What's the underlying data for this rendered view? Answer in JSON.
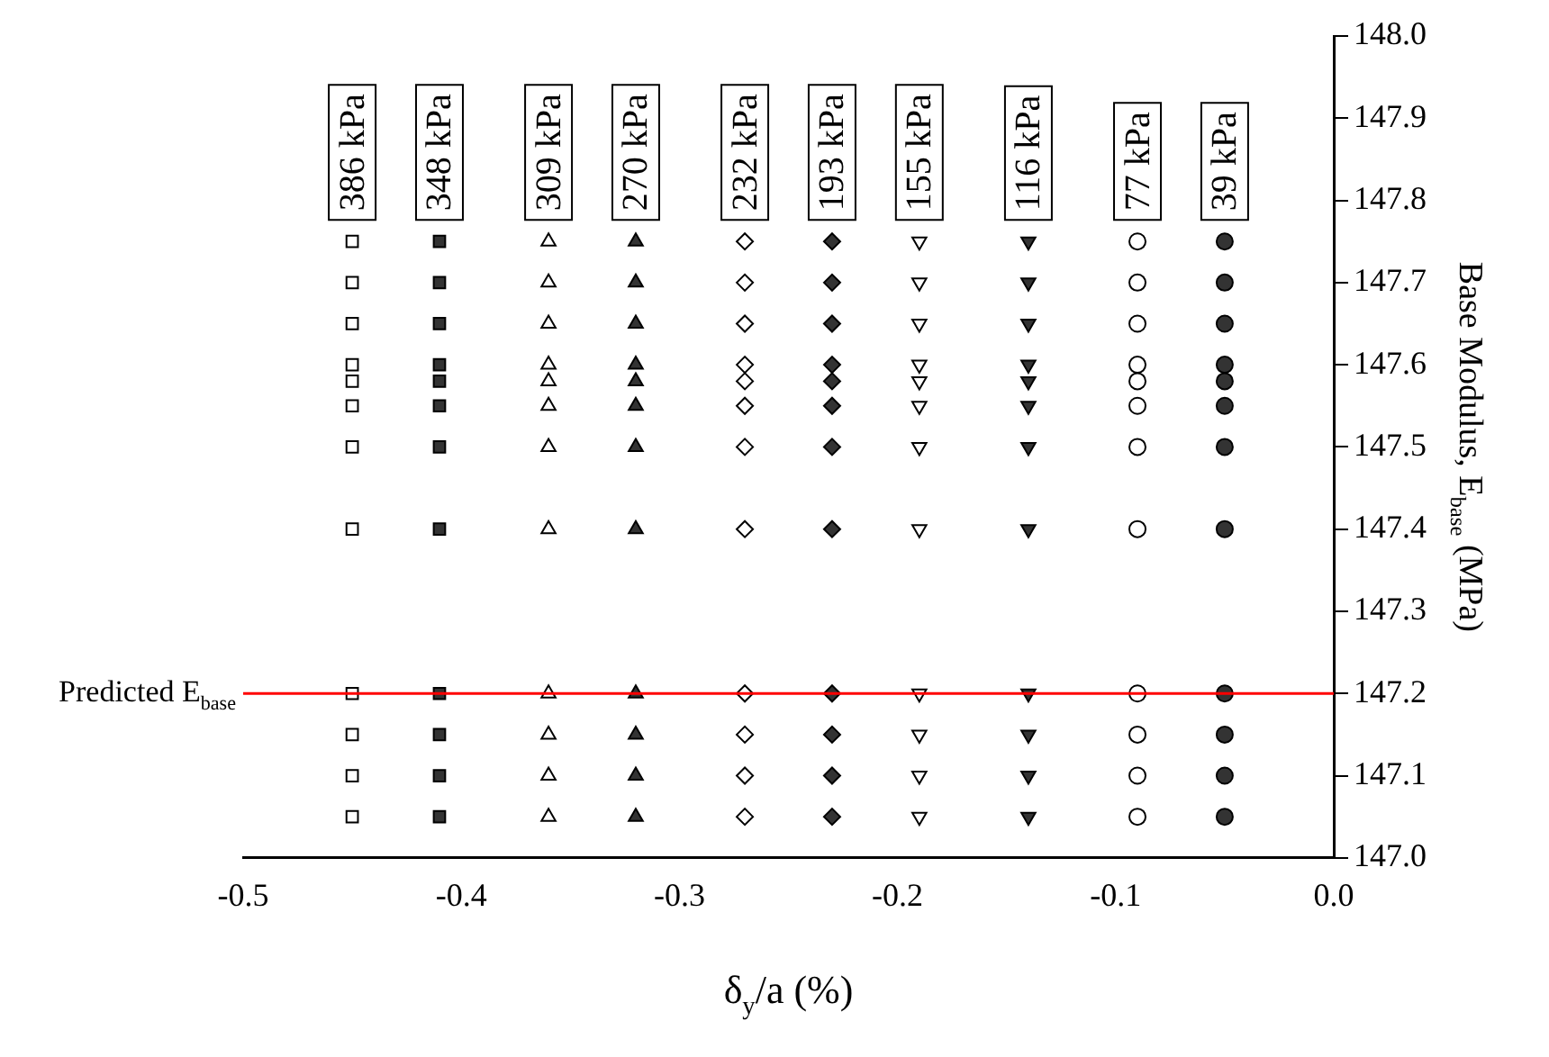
{
  "chart_data": {
    "type": "scatter",
    "xlabel": "δ$_{y}$/a (%)",
    "ylabel": "Base Modulus, E$_{base}$ (MPa)",
    "xlim": [
      -0.5,
      0
    ],
    "xticks": [
      -0.5,
      -0.4,
      -0.3,
      -0.2,
      -0.1,
      {
        "value": 0,
        "label": "0.0"
      }
    ],
    "ylim": [
      147,
      148
    ],
    "yticks": [
      {
        "value": 147,
        "label": "147.0"
      },
      147.1,
      147.2,
      147.3,
      147.4,
      147.5,
      147.6,
      147.7,
      147.8,
      147.9,
      {
        "value": 148,
        "label": "148.0"
      }
    ],
    "grid": false,
    "legend": false,
    "ref_lines": [
      {
        "axis": "y",
        "value": 147.2,
        "label": "Predicted E$_{base}$",
        "color": "#ff0000",
        "line_style": "solid"
      }
    ],
    "series": [
      {
        "name": "386 kPa",
        "color": "#ffffff",
        "marker": "square",
        "x": [
          -0.45,
          -0.45,
          -0.45,
          -0.45,
          -0.45,
          -0.45,
          -0.45,
          -0.45,
          -0.45,
          -0.45,
          -0.45,
          -0.45
        ],
        "values": [
          147.05,
          147.1,
          147.15,
          147.2,
          147.4,
          147.5,
          147.55,
          147.58,
          147.6,
          147.65,
          147.7,
          147.75
        ]
      },
      {
        "name": "348 kPa",
        "color": "#333333",
        "marker": "square",
        "x": [
          -0.41,
          -0.41,
          -0.41,
          -0.41,
          -0.41,
          -0.41,
          -0.41,
          -0.41,
          -0.41,
          -0.41,
          -0.41,
          -0.41
        ],
        "values": [
          147.05,
          147.1,
          147.15,
          147.2,
          147.4,
          147.5,
          147.55,
          147.58,
          147.6,
          147.65,
          147.7,
          147.75
        ]
      },
      {
        "name": "309 kPa",
        "color": "#ffffff",
        "marker": "triangle",
        "x": [
          -0.36,
          -0.36,
          -0.36,
          -0.36,
          -0.36,
          -0.36,
          -0.36,
          -0.36,
          -0.36,
          -0.36,
          -0.36,
          -0.36
        ],
        "values": [
          147.05,
          147.1,
          147.15,
          147.2,
          147.4,
          147.5,
          147.55,
          147.58,
          147.6,
          147.65,
          147.7,
          147.75
        ]
      },
      {
        "name": "270 kPa",
        "color": "#333333",
        "marker": "triangle",
        "x": [
          -0.32,
          -0.32,
          -0.32,
          -0.32,
          -0.32,
          -0.32,
          -0.32,
          -0.32,
          -0.32,
          -0.32,
          -0.32,
          -0.32
        ],
        "values": [
          147.05,
          147.1,
          147.15,
          147.2,
          147.4,
          147.5,
          147.55,
          147.58,
          147.6,
          147.65,
          147.7,
          147.75
        ]
      },
      {
        "name": "232 kPa",
        "color": "#ffffff",
        "marker": "diamond",
        "x": [
          -0.27,
          -0.27,
          -0.27,
          -0.27,
          -0.27,
          -0.27,
          -0.27,
          -0.27,
          -0.27,
          -0.27,
          -0.27,
          -0.27
        ],
        "values": [
          147.05,
          147.1,
          147.15,
          147.2,
          147.4,
          147.5,
          147.55,
          147.58,
          147.6,
          147.65,
          147.7,
          147.75
        ]
      },
      {
        "name": "193 kPa",
        "color": "#333333",
        "marker": "diamond",
        "x": [
          -0.23,
          -0.23,
          -0.23,
          -0.23,
          -0.23,
          -0.23,
          -0.23,
          -0.23,
          -0.23,
          -0.23,
          -0.23,
          -0.23
        ],
        "values": [
          147.05,
          147.1,
          147.15,
          147.2,
          147.4,
          147.5,
          147.55,
          147.58,
          147.6,
          147.65,
          147.7,
          147.75
        ]
      },
      {
        "name": "155 kPa",
        "color": "#ffffff",
        "marker": "triangle-down",
        "x": [
          -0.19,
          -0.19,
          -0.19,
          -0.19,
          -0.19,
          -0.19,
          -0.19,
          -0.19,
          -0.19,
          -0.19,
          -0.19,
          -0.19
        ],
        "values": [
          147.05,
          147.1,
          147.15,
          147.2,
          147.4,
          147.5,
          147.55,
          147.58,
          147.6,
          147.65,
          147.7,
          147.75
        ]
      },
      {
        "name": "116 kPa",
        "color": "#333333",
        "marker": "triangle-down",
        "x": [
          -0.14,
          -0.14,
          -0.14,
          -0.14,
          -0.14,
          -0.14,
          -0.14,
          -0.14,
          -0.14,
          -0.14,
          -0.14,
          -0.14
        ],
        "values": [
          147.05,
          147.1,
          147.15,
          147.2,
          147.4,
          147.5,
          147.55,
          147.58,
          147.6,
          147.65,
          147.7,
          147.75
        ]
      },
      {
        "name": "77 kPa",
        "color": "#ffffff",
        "marker": "circle",
        "x": [
          -0.09,
          -0.09,
          -0.09,
          -0.09,
          -0.09,
          -0.09,
          -0.09,
          -0.09,
          -0.09,
          -0.09,
          -0.09,
          -0.09
        ],
        "values": [
          147.05,
          147.1,
          147.15,
          147.2,
          147.4,
          147.5,
          147.55,
          147.58,
          147.6,
          147.65,
          147.7,
          147.75
        ]
      },
      {
        "name": "39 kPa",
        "color": "#333333",
        "marker": "circle",
        "x": [
          -0.05,
          -0.05,
          -0.05,
          -0.05,
          -0.05,
          -0.05,
          -0.05,
          -0.05,
          -0.05,
          -0.05,
          -0.05,
          -0.05
        ],
        "values": [
          147.05,
          147.1,
          147.15,
          147.2,
          147.4,
          147.5,
          147.55,
          147.58,
          147.6,
          147.65,
          147.7,
          147.75
        ]
      }
    ]
  }
}
